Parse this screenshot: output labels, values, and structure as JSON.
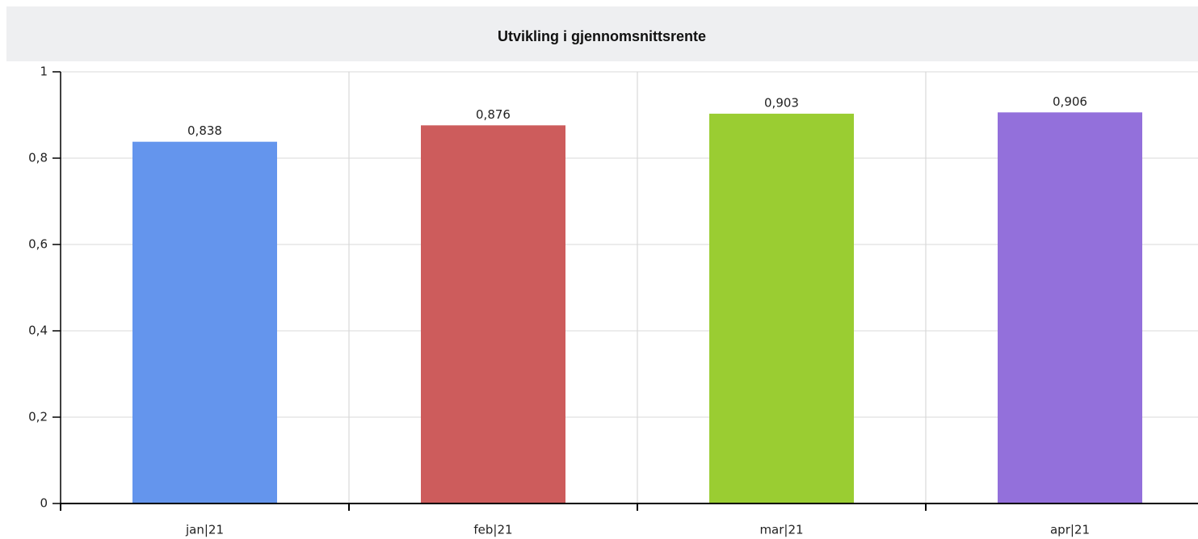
{
  "chart_data": {
    "type": "bar",
    "title": "Utvikling i gjennomsnittsrente",
    "categories": [
      "jan|21",
      "feb|21",
      "mar|21",
      "apr|21"
    ],
    "values": [
      0.838,
      0.876,
      0.903,
      0.906
    ],
    "value_labels": [
      "0,838",
      "0,876",
      "0,903",
      "0,906"
    ],
    "colors": [
      "#6495ed",
      "#cd5c5c",
      "#9acd32",
      "#9370db"
    ],
    "ylim": [
      0,
      1
    ],
    "yticks": [
      0,
      {
        "value": 0.2,
        "label": "0,2"
      },
      {
        "value": 0.4,
        "label": "0,4"
      },
      {
        "value": 0.6,
        "label": "0,6"
      },
      {
        "value": 0.8,
        "label": "0,8"
      },
      1
    ],
    "grid": true
  }
}
